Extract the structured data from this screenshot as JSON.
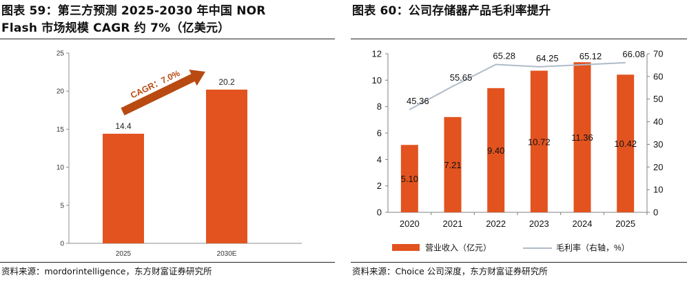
{
  "left": {
    "title_line1": "图表 59：第三方预测  2025-2030  年中国  NOR",
    "title_line2": "Flash 市场规模 CAGR 约 7%（亿美元）",
    "source": "资料来源：mordorintelligence，东方财富证券研究所"
  },
  "right": {
    "title_line1": "图表 60：公司存储器产品毛利率提升",
    "source": "资料来源：Choice 公司深度，东方财富证券研究所"
  },
  "colors": {
    "bar": "#E2531F",
    "arrow": "#B84A12",
    "line": "#AEBBC8",
    "axis": "#7F7F7F"
  },
  "chart_data": [
    {
      "type": "bar",
      "title": "第三方预测 2025-2030 年中国 NOR Flash 市场规模 CAGR 约 7%（亿美元）",
      "categories": [
        "2025",
        "2030E"
      ],
      "values": [
        14.4,
        20.2
      ],
      "ylim": [
        0,
        25
      ],
      "yticks": [
        "0",
        "5",
        "10",
        "15",
        "20",
        "25"
      ],
      "data_labels": [
        "14.4",
        "20.2"
      ],
      "annotation": "CAGR：7.0%",
      "grid": false
    },
    {
      "type": "bar+line",
      "title": "公司存储器产品毛利率提升",
      "categories": [
        "2020",
        "2021",
        "2022",
        "2023",
        "2024",
        "2025"
      ],
      "series": [
        {
          "name": "营业收入（亿元）",
          "type": "bar",
          "axis": "left",
          "values": [
            5.1,
            7.21,
            9.4,
            10.72,
            11.36,
            10.42
          ],
          "labels": [
            "5.10",
            "7.21",
            "9.40",
            "10.72",
            "11.36",
            "10.42"
          ]
        },
        {
          "name": "毛利率（右轴，%）",
          "type": "line",
          "axis": "right",
          "values": [
            45.36,
            55.65,
            65.28,
            64.25,
            65.12,
            66.08
          ],
          "labels": [
            "45.36",
            "55.65",
            "65.28",
            "64.25",
            "65.12",
            "66.08"
          ]
        }
      ],
      "ylim": [
        0,
        12
      ],
      "yticks": [
        "0",
        "2",
        "4",
        "6",
        "8",
        "10",
        "12"
      ],
      "y2lim": [
        0,
        70
      ],
      "y2ticks": [
        "0",
        "10",
        "20",
        "30",
        "40",
        "50",
        "60",
        "70"
      ],
      "legend": "bottom",
      "grid": false
    }
  ]
}
